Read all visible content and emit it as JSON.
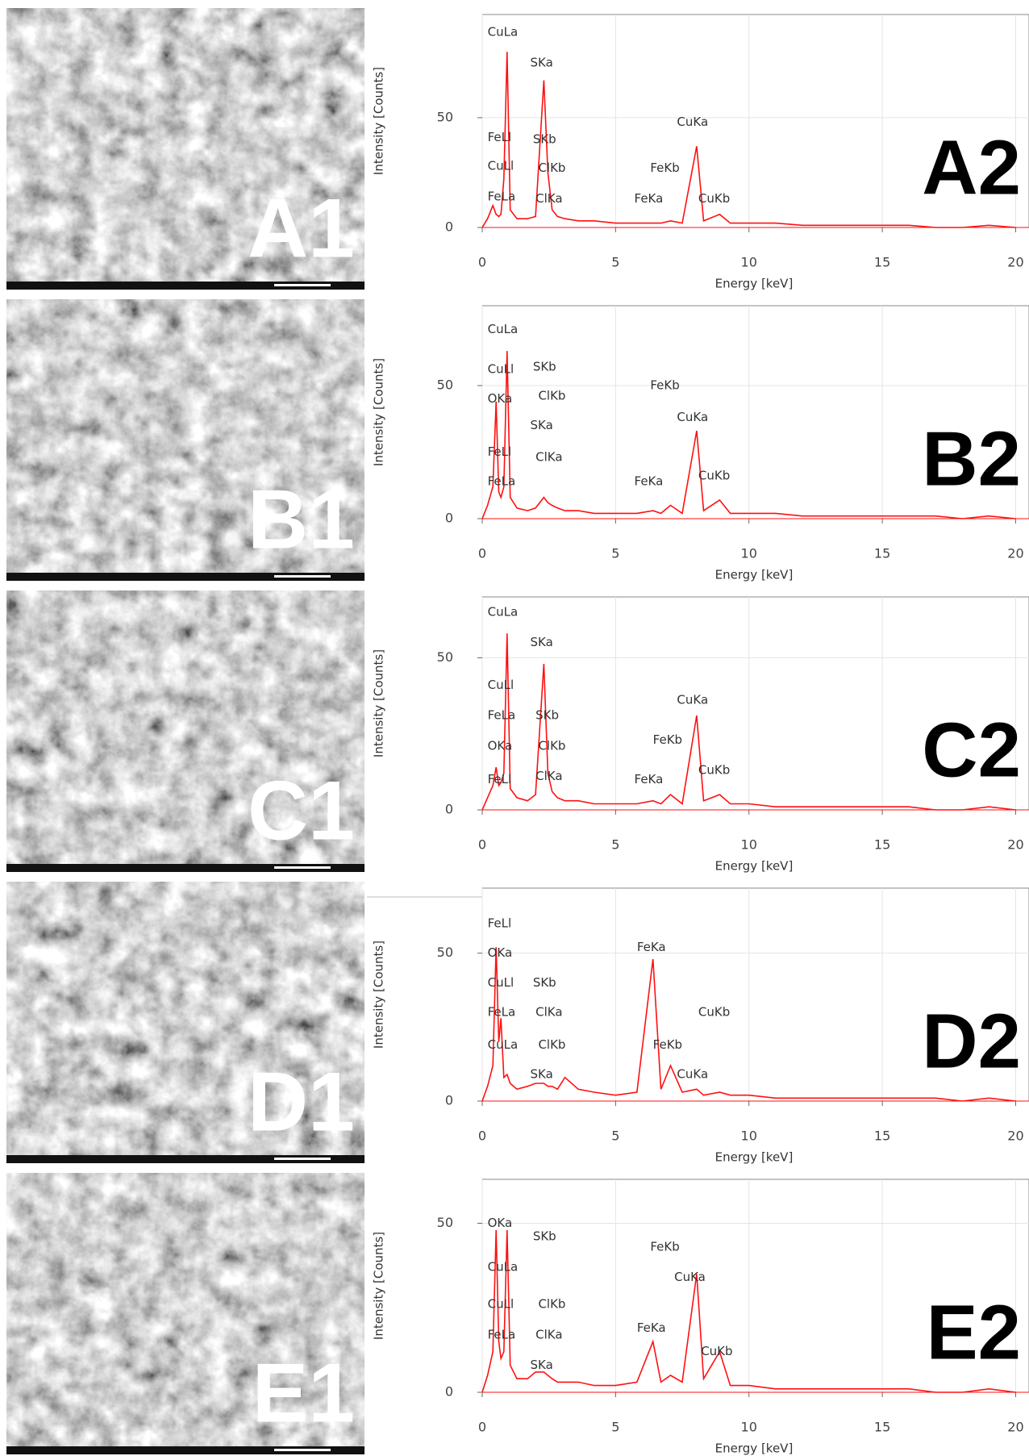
{
  "images": [
    {
      "label": "A1"
    },
    {
      "label": "B1"
    },
    {
      "label": "C1"
    },
    {
      "label": "D1"
    },
    {
      "label": "E1"
    }
  ],
  "chart_data": [
    {
      "type": "line",
      "label": "A2",
      "xlabel": "Energy [keV]",
      "ylabel": "Intensity [Counts]",
      "color": "#ff1010",
      "grid": true,
      "xlim": [
        0,
        20.5
      ],
      "xticks": [
        0,
        5,
        10,
        15,
        20
      ],
      "ylim": [
        0,
        97
      ],
      "yticks": [
        0,
        50
      ],
      "x": [
        0,
        0.2,
        0.4,
        0.52,
        0.62,
        0.7,
        0.81,
        0.93,
        1.05,
        1.3,
        1.7,
        2.0,
        2.31,
        2.46,
        2.62,
        2.82,
        3.1,
        3.6,
        4.2,
        5,
        5.8,
        6.4,
        6.7,
        7.06,
        7.5,
        8.04,
        8.3,
        8.9,
        9.3,
        10,
        11,
        12,
        13,
        14,
        15,
        16,
        17,
        18,
        19,
        20
      ],
      "values": [
        0,
        4,
        10,
        6,
        5,
        6,
        22,
        80,
        8,
        4,
        4,
        5,
        67,
        25,
        8,
        5,
        4,
        3,
        3,
        2,
        2,
        2,
        2,
        3,
        2,
        37,
        3,
        6,
        2,
        2,
        2,
        1,
        1,
        1,
        1,
        1,
        0,
        0,
        1,
        0
      ],
      "annotations": [
        {
          "text": "CuLa",
          "x": 0.2,
          "y": 89
        },
        {
          "text": "SKa",
          "x": 1.8,
          "y": 75
        },
        {
          "text": "FeLl",
          "x": 0.2,
          "y": 41
        },
        {
          "text": "SKb",
          "x": 1.9,
          "y": 40
        },
        {
          "text": "CuLl",
          "x": 0.2,
          "y": 28
        },
        {
          "text": "ClKb",
          "x": 2.1,
          "y": 27
        },
        {
          "text": "FeKb",
          "x": 6.3,
          "y": 27
        },
        {
          "text": "CuKa",
          "x": 7.3,
          "y": 48
        },
        {
          "text": "FeLa",
          "x": 0.2,
          "y": 14
        },
        {
          "text": "ClKa",
          "x": 2.0,
          "y": 13
        },
        {
          "text": "FeKa",
          "x": 5.7,
          "y": 13
        },
        {
          "text": "CuKb",
          "x": 8.1,
          "y": 13
        }
      ]
    },
    {
      "type": "line",
      "label": "B2",
      "xlabel": "Energy [keV]",
      "ylabel": "Intensity [Counts]",
      "color": "#ff1010",
      "grid": true,
      "xlim": [
        0,
        20.5
      ],
      "xticks": [
        0,
        5,
        10,
        15,
        20
      ],
      "ylim": [
        0,
        80
      ],
      "yticks": [
        0,
        50
      ],
      "x": [
        0,
        0.2,
        0.4,
        0.52,
        0.62,
        0.7,
        0.81,
        0.93,
        1.05,
        1.3,
        1.7,
        2.0,
        2.31,
        2.46,
        2.62,
        2.82,
        3.1,
        3.6,
        4.2,
        5,
        5.8,
        6.4,
        6.7,
        7.06,
        7.5,
        8.04,
        8.3,
        8.9,
        9.3,
        10,
        11,
        12,
        13,
        14,
        15,
        16,
        17,
        18,
        19,
        20
      ],
      "values": [
        0,
        5,
        12,
        44,
        10,
        8,
        12,
        63,
        8,
        4,
        3,
        4,
        8,
        6,
        5,
        4,
        3,
        3,
        2,
        2,
        2,
        3,
        2,
        5,
        2,
        33,
        3,
        7,
        2,
        2,
        2,
        1,
        1,
        1,
        1,
        1,
        1,
        0,
        1,
        0
      ],
      "annotations": [
        {
          "text": "CuLa",
          "x": 0.2,
          "y": 71
        },
        {
          "text": "CuLl",
          "x": 0.2,
          "y": 56
        },
        {
          "text": "SKb",
          "x": 1.9,
          "y": 57
        },
        {
          "text": "OKa",
          "x": 0.2,
          "y": 45
        },
        {
          "text": "ClKb",
          "x": 2.1,
          "y": 46
        },
        {
          "text": "FeKb",
          "x": 6.3,
          "y": 50
        },
        {
          "text": "CuKa",
          "x": 7.3,
          "y": 38
        },
        {
          "text": "SKa",
          "x": 1.8,
          "y": 35
        },
        {
          "text": "FeLl",
          "x": 0.2,
          "y": 25
        },
        {
          "text": "ClKa",
          "x": 2.0,
          "y": 23
        },
        {
          "text": "FeLa",
          "x": 0.2,
          "y": 14
        },
        {
          "text": "FeKa",
          "x": 5.7,
          "y": 14
        },
        {
          "text": "CuKb",
          "x": 8.1,
          "y": 16
        }
      ]
    },
    {
      "type": "line",
      "label": "C2",
      "xlabel": "Energy [keV]",
      "ylabel": "Intensity [Counts]",
      "color": "#ff1010",
      "grid": true,
      "xlim": [
        0,
        20.5
      ],
      "xticks": [
        0,
        5,
        10,
        15,
        20
      ],
      "ylim": [
        0,
        70
      ],
      "yticks": [
        0,
        50
      ],
      "x": [
        0,
        0.2,
        0.4,
        0.52,
        0.62,
        0.7,
        0.81,
        0.93,
        1.05,
        1.3,
        1.7,
        2.0,
        2.31,
        2.46,
        2.62,
        2.82,
        3.1,
        3.6,
        4.2,
        5,
        5.8,
        6.4,
        6.7,
        7.06,
        7.5,
        8.04,
        8.3,
        8.9,
        9.3,
        10,
        11,
        12,
        13,
        14,
        15,
        16,
        17,
        18,
        19,
        20
      ],
      "values": [
        0,
        4,
        8,
        14,
        8,
        9,
        12,
        58,
        7,
        4,
        3,
        5,
        48,
        12,
        6,
        4,
        3,
        3,
        2,
        2,
        2,
        3,
        2,
        5,
        2,
        31,
        3,
        5,
        2,
        2,
        1,
        1,
        1,
        1,
        1,
        1,
        0,
        0,
        1,
        0
      ],
      "annotations": [
        {
          "text": "CuLa",
          "x": 0.2,
          "y": 65
        },
        {
          "text": "SKa",
          "x": 1.8,
          "y": 55
        },
        {
          "text": "CuLl",
          "x": 0.2,
          "y": 41
        },
        {
          "text": "FeLa",
          "x": 0.2,
          "y": 31
        },
        {
          "text": "SKb",
          "x": 2.0,
          "y": 31
        },
        {
          "text": "CuKa",
          "x": 7.3,
          "y": 36
        },
        {
          "text": "OKa",
          "x": 0.2,
          "y": 21
        },
        {
          "text": "ClKb",
          "x": 2.1,
          "y": 21
        },
        {
          "text": "FeKb",
          "x": 6.4,
          "y": 23
        },
        {
          "text": "FeLl",
          "x": 0.2,
          "y": 10
        },
        {
          "text": "ClKa",
          "x": 2.0,
          "y": 11
        },
        {
          "text": "FeKa",
          "x": 5.7,
          "y": 10
        },
        {
          "text": "CuKb",
          "x": 8.1,
          "y": 13
        }
      ]
    },
    {
      "type": "line",
      "label": "D2",
      "xlabel": "Energy [keV]",
      "ylabel": "Intensity [Counts]",
      "color": "#ff1010",
      "grid": true,
      "xlim": [
        0,
        20.5
      ],
      "xticks": [
        0,
        5,
        10,
        15,
        20
      ],
      "ylim": [
        0,
        72
      ],
      "yticks": [
        0,
        50
      ],
      "x": [
        0,
        0.2,
        0.4,
        0.52,
        0.62,
        0.7,
        0.81,
        0.93,
        1.05,
        1.3,
        1.7,
        2.0,
        2.31,
        2.46,
        2.62,
        2.82,
        3.1,
        3.6,
        4.2,
        5,
        5.8,
        6.4,
        6.7,
        7.06,
        7.5,
        8.04,
        8.3,
        8.9,
        9.3,
        10,
        11,
        12,
        13,
        14,
        15,
        16,
        17,
        18,
        19,
        20
      ],
      "values": [
        0,
        5,
        12,
        52,
        20,
        28,
        8,
        9,
        6,
        4,
        5,
        6,
        6,
        5,
        5,
        4,
        8,
        4,
        3,
        2,
        3,
        48,
        4,
        12,
        3,
        4,
        2,
        3,
        2,
        2,
        1,
        1,
        1,
        1,
        1,
        1,
        1,
        0,
        1,
        0
      ],
      "annotations": [
        {
          "text": "FeLl",
          "x": 0.2,
          "y": 60
        },
        {
          "text": "OKa",
          "x": 0.2,
          "y": 50
        },
        {
          "text": "FeKa",
          "x": 5.8,
          "y": 52
        },
        {
          "text": "CuLl",
          "x": 0.2,
          "y": 40
        },
        {
          "text": "SKb",
          "x": 1.9,
          "y": 40
        },
        {
          "text": "FeLa",
          "x": 0.2,
          "y": 30
        },
        {
          "text": "ClKa",
          "x": 2.0,
          "y": 30
        },
        {
          "text": "CuKb",
          "x": 8.1,
          "y": 30
        },
        {
          "text": "CuLa",
          "x": 0.2,
          "y": 19
        },
        {
          "text": "ClKb",
          "x": 2.1,
          "y": 19
        },
        {
          "text": "FeKb",
          "x": 6.4,
          "y": 19
        },
        {
          "text": "SKa",
          "x": 1.8,
          "y": 9
        },
        {
          "text": "CuKa",
          "x": 7.3,
          "y": 9
        }
      ]
    },
    {
      "type": "line",
      "label": "E2",
      "xlabel": "Energy [keV]",
      "ylabel": "Intensity [Counts]",
      "color": "#ff1010",
      "grid": true,
      "xlim": [
        0,
        20.5
      ],
      "xticks": [
        0,
        5,
        10,
        15,
        20
      ],
      "ylim": [
        0,
        63
      ],
      "yticks": [
        0,
        50
      ],
      "x": [
        0,
        0.2,
        0.4,
        0.52,
        0.62,
        0.7,
        0.81,
        0.93,
        1.05,
        1.3,
        1.7,
        2.0,
        2.31,
        2.46,
        2.62,
        2.82,
        3.1,
        3.6,
        4.2,
        5,
        5.8,
        6.4,
        6.7,
        7.06,
        7.5,
        8.04,
        8.3,
        8.9,
        9.3,
        10,
        11,
        12,
        13,
        14,
        15,
        16,
        17,
        18,
        19,
        20
      ],
      "values": [
        0,
        5,
        12,
        48,
        15,
        10,
        12,
        48,
        8,
        4,
        4,
        6,
        6,
        5,
        4,
        3,
        3,
        3,
        2,
        2,
        3,
        15,
        3,
        5,
        3,
        35,
        4,
        12,
        2,
        2,
        1,
        1,
        1,
        1,
        1,
        1,
        0,
        0,
        1,
        0
      ],
      "annotations": [
        {
          "text": "OKa",
          "x": 0.2,
          "y": 50
        },
        {
          "text": "SKb",
          "x": 1.9,
          "y": 46
        },
        {
          "text": "FeKb",
          "x": 6.3,
          "y": 43
        },
        {
          "text": "CuLa",
          "x": 0.2,
          "y": 37
        },
        {
          "text": "CuKa",
          "x": 7.2,
          "y": 34
        },
        {
          "text": "CuLl",
          "x": 0.2,
          "y": 26
        },
        {
          "text": "ClKb",
          "x": 2.1,
          "y": 26
        },
        {
          "text": "FeLa",
          "x": 0.2,
          "y": 17
        },
        {
          "text": "ClKa",
          "x": 2.0,
          "y": 17
        },
        {
          "text": "FeKa",
          "x": 5.8,
          "y": 19
        },
        {
          "text": "CuKb",
          "x": 8.2,
          "y": 12
        },
        {
          "text": "SKa",
          "x": 1.8,
          "y": 8
        }
      ]
    }
  ]
}
